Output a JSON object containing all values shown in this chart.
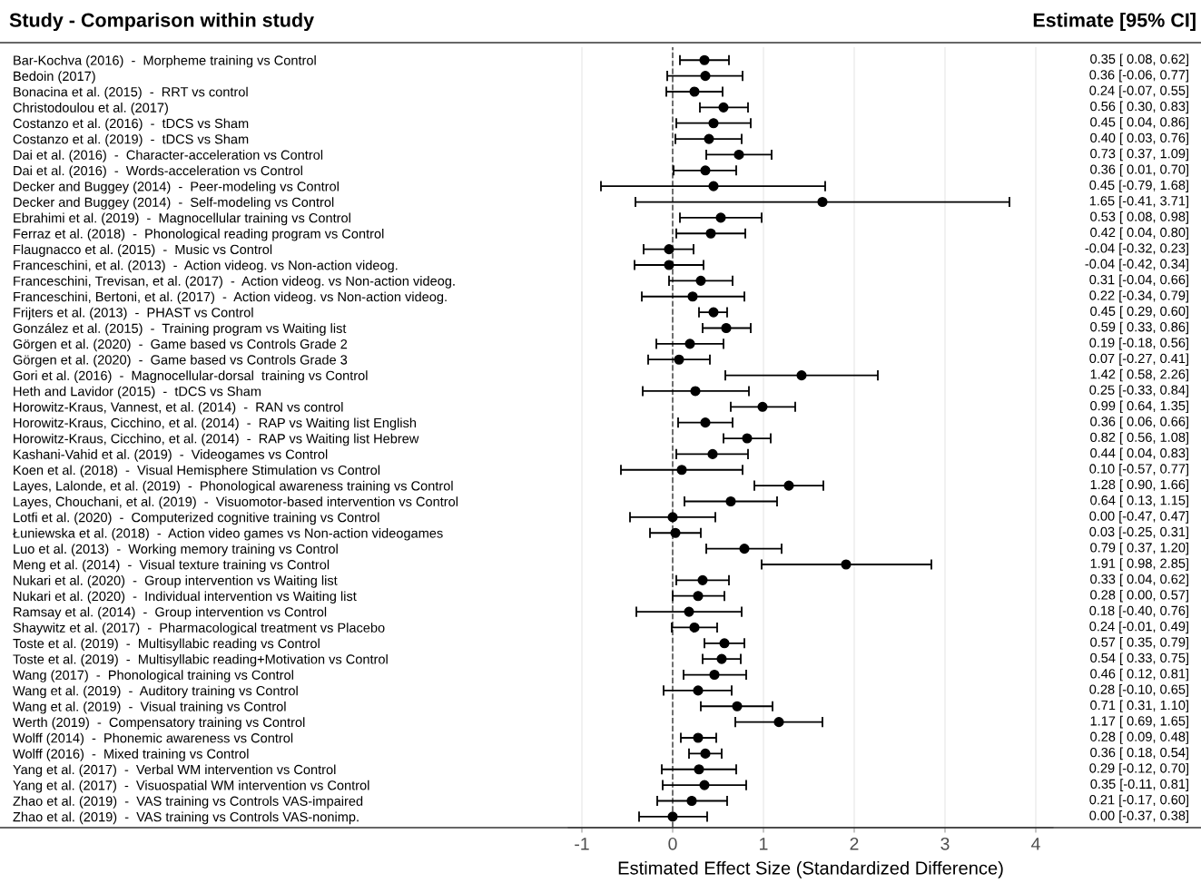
{
  "chart_data": {
    "type": "scatter",
    "orientation": "horizontal",
    "title": "Study - Comparison within study",
    "xlabel": "Estimated Effect Size (Standardized Difference)",
    "annotations": [
      "Estimate [95% CI]"
    ],
    "categories": [
      "Bar-Kochva (2016)  -  Morpheme training vs Control",
      "Bedoin (2017)",
      "Bonacina et al. (2015)  -  RRT vs control",
      "Christodoulou et al. (2017)",
      "Costanzo et al. (2016)  -  tDCS vs Sham",
      "Costanzo et al. (2019)  -  tDCS vs Sham",
      "Dai et al. (2016)  -  Character-acceleration vs Control",
      "Dai et al. (2016)  -  Words-acceleration vs Control",
      "Decker and Buggey (2014)  -  Peer-modeling vs Control",
      "Decker and Buggey (2014)  -  Self-modeling vs Control",
      "Ebrahimi et al. (2019)  -  Magnocellular training vs Control",
      "Ferraz et al. (2018)  -  Phonological reading program vs Control",
      "Flaugnacco et al. (2015)  -  Music vs Control",
      "Franceschini, et al. (2013)  -  Action videog. vs Non-action videog.",
      "Franceschini, Trevisan, et al. (2017)  -  Action videog. vs Non-action videog.",
      "Franceschini, Bertoni, et al. (2017)  -  Action videog. vs Non-action videog.",
      "Frijters et al. (2013)  -  PHAST vs Control",
      "González et al. (2015)  -  Training program vs Waiting list",
      "Görgen et al. (2020)  -  Game based vs Controls Grade 2",
      "Görgen et al. (2020)  -  Game based vs Controls Grade 3",
      "Gori et al. (2016)  -  Magnocellular-dorsal  training vs Control",
      "Heth and Lavidor (2015)  -  tDCS vs Sham",
      "Horowitz-Kraus, Vannest, et al. (2014)  -  RAN vs control",
      "Horowitz-Kraus, Cicchino, et al. (2014)  -  RAP vs Waiting list English",
      "Horowitz-Kraus, Cicchino, et al. (2014)  -  RAP vs Waiting list Hebrew",
      "Kashani-Vahid et al. (2019)  -  Videogames vs Control",
      "Koen et al. (2018)  -  Visual Hemisphere Stimulation vs Control",
      "Layes, Lalonde, et al. (2019)  -  Phonological awareness training vs Control",
      "Layes, Chouchani, et al. (2019)  -  Visuomotor-based intervention vs Control",
      "Lotfi et al. (2020)  -  Computerized cognitive training vs Control",
      "Łuniewska et al. (2018)  -  Action video games vs Non-action videogames",
      "Luo et al. (2013)  -  Working memory training vs Control",
      "Meng et al. (2014)  -  Visual texture training vs Control",
      "Nukari et al. (2020)  -  Group intervention vs Waiting list",
      "Nukari et al. (2020)  -  Individual intervention vs Waiting list",
      "Ramsay et al. (2014)  -  Group intervention vs Control",
      "Shaywitz et al. (2017)  -  Pharmacological treatment vs Placebo",
      "Toste et al. (2019)  -  Multisyllabic reading vs Control",
      "Toste et al. (2019)  -  Multisyllabic reading+Motivation vs Control",
      "Wang (2017)  -  Phonological training vs Control",
      "Wang et al. (2019)  -  Auditory training vs Control",
      "Wang et al. (2019)  -  Visual training vs Control",
      "Werth (2019)  -  Compensatory training vs Control",
      "Wolff (2014)  -  Phonemic awareness vs Control",
      "Wolff (2016)  -  Mixed training vs Control",
      "Yang et al. (2017)  -  Verbal WM intervention vs Control",
      "Yang et al. (2017)  -  Visuospatial WM intervention vs Control",
      "Zhao et al. (2019)  -  VAS training vs Controls VAS-impaired",
      "Zhao et al. (2019)  -  VAS training vs Controls VAS-nonimp."
    ],
    "series": [
      {
        "color": "#000000",
        "values": [
          0.35,
          0.36,
          0.24,
          0.56,
          0.45,
          0.4,
          0.73,
          0.36,
          0.45,
          1.65,
          0.53,
          0.42,
          -0.04,
          -0.04,
          0.31,
          0.22,
          0.45,
          0.59,
          0.19,
          0.07,
          1.42,
          0.25,
          0.99,
          0.36,
          0.82,
          0.44,
          0.1,
          1.28,
          0.64,
          0.0,
          0.03,
          0.79,
          1.91,
          0.33,
          0.28,
          0.18,
          0.24,
          0.57,
          0.54,
          0.46,
          0.28,
          0.71,
          1.17,
          0.28,
          0.36,
          0.29,
          0.35,
          0.21,
          0.0
        ],
        "errors": [
          [
            0.08,
            0.62
          ],
          [
            -0.06,
            0.77
          ],
          [
            -0.07,
            0.55
          ],
          [
            0.3,
            0.83
          ],
          [
            0.04,
            0.86
          ],
          [
            0.03,
            0.76
          ],
          [
            0.37,
            1.09
          ],
          [
            0.01,
            0.7
          ],
          [
            -0.79,
            1.68
          ],
          [
            -0.41,
            3.71
          ],
          [
            0.08,
            0.98
          ],
          [
            0.04,
            0.8
          ],
          [
            -0.32,
            0.23
          ],
          [
            -0.42,
            0.34
          ],
          [
            -0.04,
            0.66
          ],
          [
            -0.34,
            0.79
          ],
          [
            0.29,
            0.6
          ],
          [
            0.33,
            0.86
          ],
          [
            -0.18,
            0.56
          ],
          [
            -0.27,
            0.41
          ],
          [
            0.58,
            2.26
          ],
          [
            -0.33,
            0.84
          ],
          [
            0.64,
            1.35
          ],
          [
            0.06,
            0.66
          ],
          [
            0.56,
            1.08
          ],
          [
            0.04,
            0.83
          ],
          [
            -0.57,
            0.77
          ],
          [
            0.9,
            1.66
          ],
          [
            0.13,
            1.15
          ],
          [
            -0.47,
            0.47
          ],
          [
            -0.25,
            0.31
          ],
          [
            0.37,
            1.2
          ],
          [
            0.98,
            2.85
          ],
          [
            0.04,
            0.62
          ],
          [
            0.0,
            0.57
          ],
          [
            -0.4,
            0.76
          ],
          [
            -0.01,
            0.49
          ],
          [
            0.35,
            0.79
          ],
          [
            0.33,
            0.75
          ],
          [
            0.12,
            0.81
          ],
          [
            -0.1,
            0.65
          ],
          [
            0.31,
            1.1
          ],
          [
            0.69,
            1.65
          ],
          [
            0.09,
            0.48
          ],
          [
            0.18,
            0.54
          ],
          [
            -0.12,
            0.7
          ],
          [
            -0.11,
            0.81
          ],
          [
            -0.17,
            0.6
          ],
          [
            -0.37,
            0.38
          ]
        ],
        "value_labels": [
          "0.35 [ 0.08, 0.62]",
          "0.36 [-0.06, 0.77]",
          "0.24 [-0.07, 0.55]",
          "0.56 [ 0.30, 0.83]",
          "0.45 [ 0.04, 0.86]",
          "0.40 [ 0.03, 0.76]",
          "0.73 [ 0.37, 1.09]",
          "0.36 [ 0.01, 0.70]",
          "0.45 [-0.79, 1.68]",
          "1.65 [-0.41, 3.71]",
          "0.53 [ 0.08, 0.98]",
          "0.42 [ 0.04, 0.80]",
          "-0.04 [-0.32, 0.23]",
          "-0.04 [-0.42, 0.34]",
          "0.31 [-0.04, 0.66]",
          "0.22 [-0.34, 0.79]",
          "0.45 [ 0.29, 0.60]",
          "0.59 [ 0.33, 0.86]",
          "0.19 [-0.18, 0.56]",
          "0.07 [-0.27, 0.41]",
          "1.42 [ 0.58, 2.26]",
          "0.25 [-0.33, 0.84]",
          "0.99 [ 0.64, 1.35]",
          "0.36 [ 0.06, 0.66]",
          "0.82 [ 0.56, 1.08]",
          "0.44 [ 0.04, 0.83]",
          "0.10 [-0.57, 0.77]",
          "1.28 [ 0.90, 1.66]",
          "0.64 [ 0.13, 1.15]",
          "0.00 [-0.47, 0.47]",
          "0.03 [-0.25, 0.31]",
          "0.79 [ 0.37, 1.20]",
          "1.91 [ 0.98, 2.85]",
          "0.33 [ 0.04, 0.62]",
          "0.28 [ 0.00, 0.57]",
          "0.18 [-0.40, 0.76]",
          "0.24 [-0.01, 0.49]",
          "0.57 [ 0.35, 0.79]",
          "0.54 [ 0.33, 0.75]",
          "0.46 [ 0.12, 0.81]",
          "0.28 [-0.10, 0.65]",
          "0.71 [ 0.31, 1.10]",
          "1.17 [ 0.69, 1.65]",
          "0.28 [ 0.09, 0.48]",
          "0.36 [ 0.18, 0.54]",
          "0.29 [-0.12, 0.70]",
          "0.35 [-0.11, 0.81]",
          "0.21 [-0.17, 0.60]",
          "0.00 [-0.37, 0.38]"
        ]
      }
    ],
    "xlim": [
      -1.15,
      4.19
    ],
    "xticks": [
      -1,
      0,
      1,
      2,
      3,
      4
    ],
    "ref_lines": [
      {
        "axis": "x",
        "value": 0,
        "color": "#555555",
        "line_style": "dashed"
      }
    ],
    "grid": "x",
    "marker": "circle",
    "legend": false
  }
}
